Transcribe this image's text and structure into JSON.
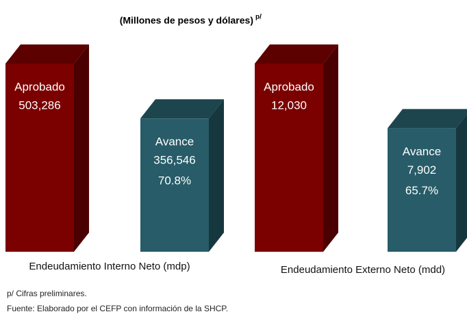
{
  "subtitle": "(Millones de pesos y dólares)",
  "subtitle_note": "p/",
  "notes": [
    "p/ Cifras preliminares.",
    "Fuente: Elaborado por el CEFP con información de la SHCP."
  ],
  "chart_data": [
    {
      "type": "bar",
      "label": "Endeudamiento Interno Neto (mdp)",
      "categories": [
        "Aprobado",
        "Avance"
      ],
      "colors": [
        "#7b0000",
        "#275c68"
      ],
      "values": [
        503286,
        356546
      ],
      "value_labels": [
        "503,286",
        "356,546"
      ],
      "share": {
        "value": 70.8,
        "label": "70.8%"
      }
    },
    {
      "type": "bar",
      "label": "Endeudamiento Externo Neto (mdd)",
      "categories": [
        "Aprobado",
        "Avance"
      ],
      "colors": [
        "#7b0000",
        "#275c68"
      ],
      "values": [
        12030,
        7902
      ],
      "value_labels": [
        "12,030",
        "7,902"
      ],
      "share": {
        "value": 65.7,
        "label": "65.7%"
      }
    }
  ]
}
